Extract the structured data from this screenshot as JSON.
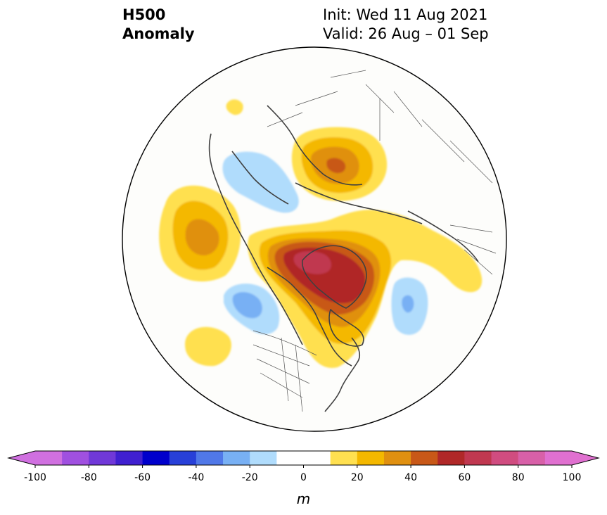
{
  "title": {
    "line1": "H500",
    "line2": "Anomaly",
    "init": "Init: Wed 11 Aug 2021",
    "valid": "Valid: 26 Aug – 01 Sep"
  },
  "colorbar": {
    "unit": "m",
    "ticks": [
      -100,
      -80,
      -60,
      -40,
      -20,
      0,
      20,
      40,
      60,
      80,
      100
    ],
    "bins": [
      {
        "min": -100,
        "max": -90,
        "color": "#d070e0"
      },
      {
        "min": -90,
        "max": -80,
        "color": "#a050e0"
      },
      {
        "min": -80,
        "max": -70,
        "color": "#7038d8"
      },
      {
        "min": -70,
        "max": -60,
        "color": "#4020d0"
      },
      {
        "min": -60,
        "max": -50,
        "color": "#0000cc"
      },
      {
        "min": -50,
        "max": -40,
        "color": "#2840d8"
      },
      {
        "min": -40,
        "max": -30,
        "color": "#5078e8"
      },
      {
        "min": -30,
        "max": -20,
        "color": "#78b0f4"
      },
      {
        "min": -20,
        "max": -10,
        "color": "#b0dcfc"
      },
      {
        "min": -10,
        "max": 0,
        "color": "#ffffff"
      },
      {
        "min": 0,
        "max": 10,
        "color": "#ffffff"
      },
      {
        "min": 10,
        "max": 20,
        "color": "#ffe050"
      },
      {
        "min": 20,
        "max": 30,
        "color": "#f4b800"
      },
      {
        "min": 30,
        "max": 40,
        "color": "#e09010"
      },
      {
        "min": 40,
        "max": 50,
        "color": "#c85818"
      },
      {
        "min": 50,
        "max": 60,
        "color": "#b02828"
      },
      {
        "min": 60,
        "max": 70,
        "color": "#c03850"
      },
      {
        "min": 70,
        "max": 80,
        "color": "#d04c80"
      },
      {
        "min": 80,
        "max": 90,
        "color": "#d860a8"
      },
      {
        "min": 90,
        "max": 100,
        "color": "#e070d0"
      }
    ],
    "under_color": "#d070e0",
    "over_color": "#e070d0"
  }
}
